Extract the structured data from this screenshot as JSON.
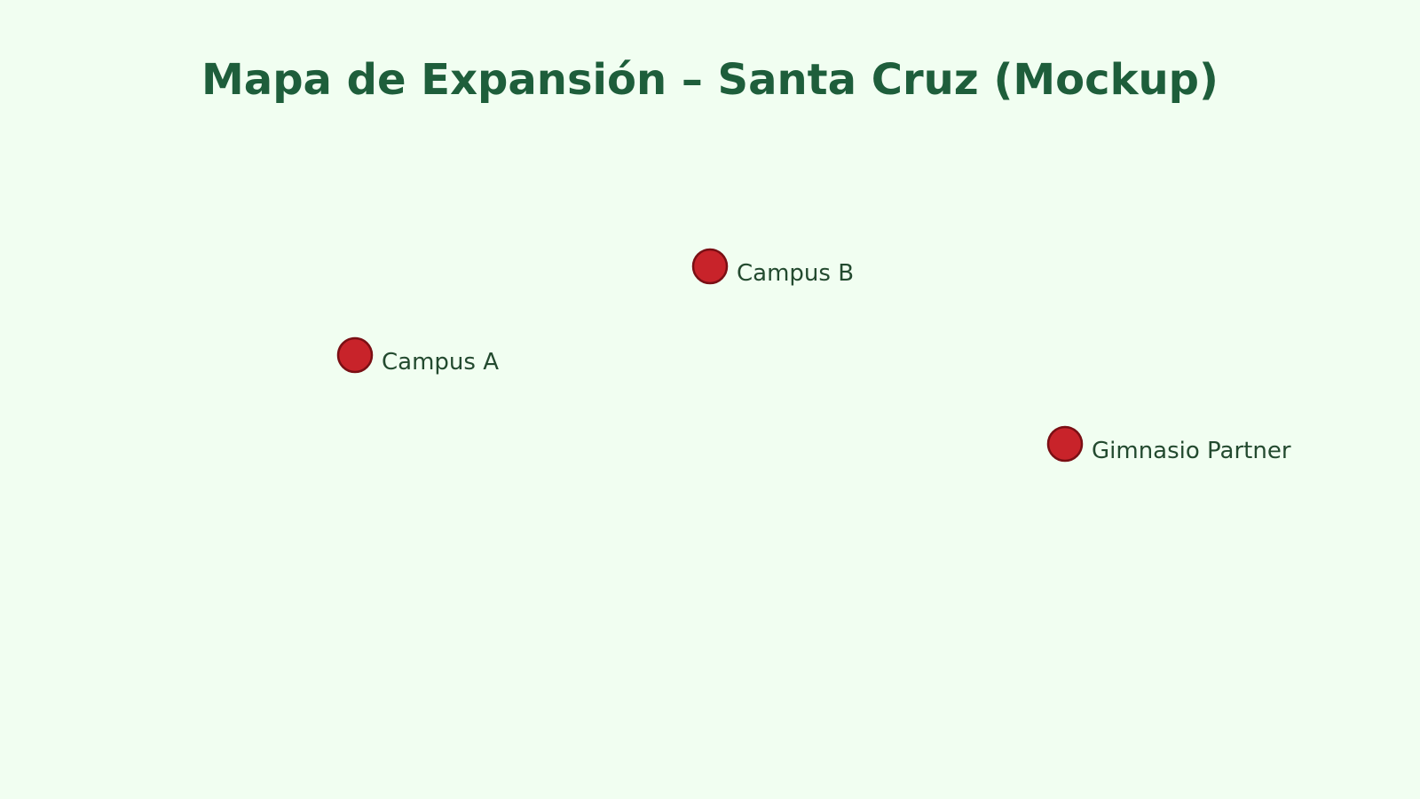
{
  "map": {
    "title": "Mapa de Expansión – Santa Cruz (Mockup)",
    "marker_color": "#c8232a",
    "marker_stroke": "#7a0f14",
    "label_color": "#234a2f",
    "title_color": "#1e5e3b",
    "background": "#f1fef1",
    "markers": [
      {
        "id": "campus-a",
        "label": "Campus A"
      },
      {
        "id": "campus-b",
        "label": "Campus B"
      },
      {
        "id": "gimnasio-partner",
        "label": "Gimnasio Partner"
      }
    ]
  }
}
